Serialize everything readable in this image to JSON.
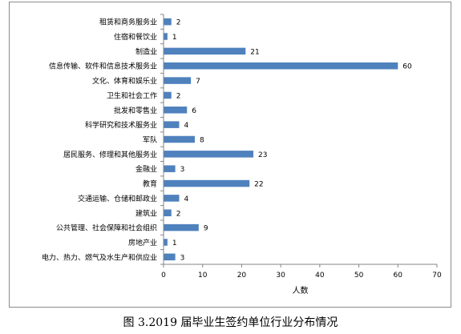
{
  "caption": "图 3.2019 届毕业生签约单位行业分布情况",
  "colors": {
    "bar": "#4f81bd",
    "axis": "#868686",
    "text": "#000000",
    "border": "#8c8c8c"
  },
  "chart_data": {
    "type": "bar",
    "orientation": "horizontal",
    "categories": [
      "租赁和商务服务业",
      "住宿和餐饮业",
      "制造业",
      "信息传输、软件和信息技术服务业",
      "文化、体育和娱乐业",
      "卫生和社会工作",
      "批发和零售业",
      "科学研究和技术服务业",
      "军队",
      "居民服务、修理和其他服务业",
      "金融业",
      "教育",
      "交通运输、仓储和邮政业",
      "建筑业",
      "公共管理、社会保障和社会组织",
      "房地产业",
      "电力、热力、燃气及水生产和供应业"
    ],
    "values": [
      2,
      1,
      21,
      60,
      7,
      2,
      6,
      4,
      8,
      23,
      3,
      22,
      4,
      2,
      9,
      1,
      3
    ],
    "xlabel": "人数",
    "ylabel": "",
    "xlim": [
      0,
      70
    ],
    "xticks": [
      0,
      10,
      20,
      30,
      40,
      50,
      60,
      70
    ],
    "data_labels": true,
    "grid": false,
    "legend": "none"
  }
}
